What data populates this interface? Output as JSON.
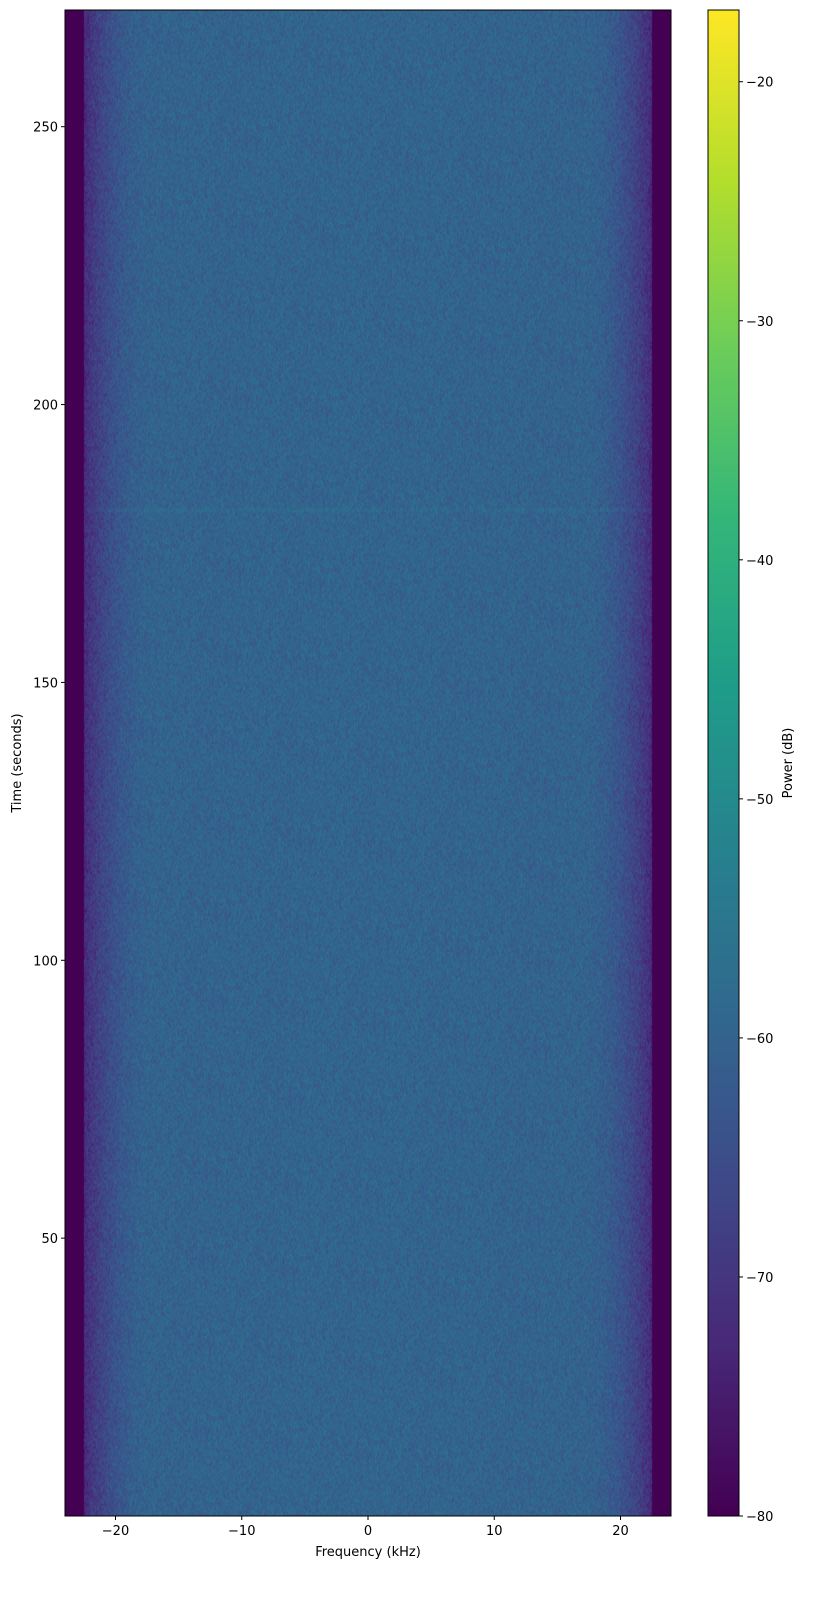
{
  "chart_data": {
    "type": "heatmap",
    "title": "",
    "xlabel": "Frequency (kHz)",
    "ylabel": "Time (seconds)",
    "xlim": [
      -24,
      24
    ],
    "ylim": [
      0,
      271
    ],
    "xticks": [
      -20,
      -10,
      0,
      10,
      20
    ],
    "xtick_labels": [
      "−20",
      "−10",
      "0",
      "10",
      "20"
    ],
    "yticks": [
      50,
      100,
      150,
      200,
      250
    ],
    "ytick_labels": [
      "50",
      "100",
      "150",
      "200",
      "250"
    ],
    "colorbar": {
      "label": "Power (dB)",
      "colormap": "viridis",
      "range": [
        -80,
        -17
      ],
      "ticks": [
        -20,
        -30,
        -40,
        -50,
        -60,
        -70,
        -80
      ],
      "tick_labels": [
        "−20",
        "−30",
        "−40",
        "−50",
        "−60",
        "−70",
        "−80"
      ]
    },
    "description_values": {
      "passband_power_db": -60,
      "floor_power_db": -80,
      "rolloff_start_khz": 17,
      "band_edge_khz": 22.5
    }
  }
}
